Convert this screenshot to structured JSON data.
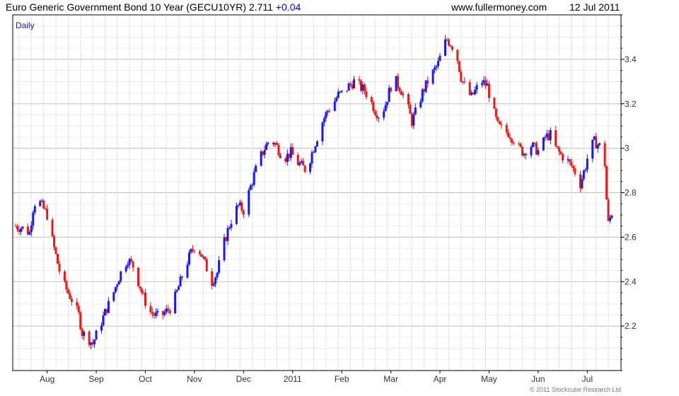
{
  "header": {
    "title": "Euro Generic Government Bond 10 Year (GECU10YR)",
    "last": "2.711",
    "change": "+0.04",
    "url": "www.fullermoney.com",
    "date": "12 Jul 2011"
  },
  "colors": {
    "up": "#1a1ae6",
    "down": "#e61a1a",
    "grid": "#c8c8c8",
    "frame": "#000000"
  },
  "chart_data": {
    "type": "candlestick",
    "period_label": "Daily",
    "copyright": "© 2011 Stockcube Research Ltd",
    "ylim": [
      2.0,
      3.6
    ],
    "y_ticks": [
      2.2,
      2.4,
      2.6,
      2.8,
      3.0,
      3.2,
      3.4
    ],
    "y_tick_labels": [
      "2.2",
      "2.4",
      "2.6",
      "2.8",
      "3",
      "3.2",
      "3.4"
    ],
    "x_labels": [
      "Aug",
      "Sep",
      "Oct",
      "Nov",
      "Dec",
      "2011",
      "Feb",
      "Mar",
      "Apr",
      "May",
      "Jun",
      "Jul"
    ],
    "x_label_days": [
      18,
      46,
      74,
      102,
      130,
      158,
      186,
      214,
      242,
      270,
      298,
      326
    ],
    "x_range": [
      0,
      342
    ],
    "close_series": [
      [
        0,
        2.65
      ],
      [
        4,
        2.64
      ],
      [
        8,
        2.62
      ],
      [
        10,
        2.73
      ],
      [
        12,
        2.78
      ],
      [
        15,
        2.74
      ],
      [
        18,
        2.7
      ],
      [
        20,
        2.62
      ],
      [
        22,
        2.55
      ],
      [
        25,
        2.45
      ],
      [
        28,
        2.38
      ],
      [
        32,
        2.32
      ],
      [
        36,
        2.25
      ],
      [
        38,
        2.17
      ],
      [
        41,
        2.15
      ],
      [
        44,
        2.12
      ],
      [
        46,
        2.16
      ],
      [
        49,
        2.22
      ],
      [
        52,
        2.28
      ],
      [
        55,
        2.33
      ],
      [
        58,
        2.4
      ],
      [
        61,
        2.46
      ],
      [
        64,
        2.5
      ],
      [
        67,
        2.47
      ],
      [
        70,
        2.4
      ],
      [
        73,
        2.33
      ],
      [
        76,
        2.27
      ],
      [
        79,
        2.25
      ],
      [
        82,
        2.24
      ],
      [
        85,
        2.26
      ],
      [
        88,
        2.28
      ],
      [
        91,
        2.33
      ],
      [
        94,
        2.4
      ],
      [
        97,
        2.47
      ],
      [
        100,
        2.53
      ],
      [
        103,
        2.57
      ],
      [
        106,
        2.52
      ],
      [
        109,
        2.46
      ],
      [
        112,
        2.4
      ],
      [
        115,
        2.44
      ],
      [
        118,
        2.55
      ],
      [
        121,
        2.63
      ],
      [
        124,
        2.7
      ],
      [
        127,
        2.74
      ],
      [
        130,
        2.72
      ],
      [
        133,
        2.8
      ],
      [
        136,
        2.88
      ],
      [
        139,
        2.95
      ],
      [
        142,
        3.0
      ],
      [
        145,
        3.04
      ],
      [
        148,
        3.02
      ],
      [
        151,
        2.98
      ],
      [
        154,
        2.96
      ],
      [
        157,
        2.98
      ],
      [
        160,
        2.94
      ],
      [
        163,
        2.92
      ],
      [
        166,
        2.9
      ],
      [
        169,
        2.98
      ],
      [
        172,
        3.05
      ],
      [
        175,
        3.12
      ],
      [
        178,
        3.17
      ],
      [
        181,
        3.2
      ],
      [
        184,
        3.24
      ],
      [
        187,
        3.25
      ],
      [
        190,
        3.28
      ],
      [
        193,
        3.3
      ],
      [
        196,
        3.28
      ],
      [
        199,
        3.26
      ],
      [
        202,
        3.22
      ],
      [
        205,
        3.17
      ],
      [
        208,
        3.14
      ],
      [
        211,
        3.2
      ],
      [
        214,
        3.28
      ],
      [
        217,
        3.3
      ],
      [
        220,
        3.26
      ],
      [
        223,
        3.2
      ],
      [
        226,
        3.12
      ],
      [
        229,
        3.18
      ],
      [
        232,
        3.25
      ],
      [
        235,
        3.3
      ],
      [
        238,
        3.34
      ],
      [
        241,
        3.38
      ],
      [
        244,
        3.46
      ],
      [
        246,
        3.49
      ],
      [
        249,
        3.46
      ],
      [
        252,
        3.4
      ],
      [
        254,
        3.32
      ],
      [
        257,
        3.26
      ],
      [
        260,
        3.23
      ],
      [
        263,
        3.27
      ],
      [
        266,
        3.3
      ],
      [
        269,
        3.28
      ],
      [
        272,
        3.18
      ],
      [
        275,
        3.1
      ],
      [
        278,
        3.08
      ],
      [
        281,
        3.07
      ],
      [
        284,
        3.04
      ],
      [
        287,
        3.0
      ],
      [
        290,
        2.98
      ],
      [
        293,
        3.02
      ],
      [
        296,
        3.0
      ],
      [
        299,
        2.98
      ],
      [
        302,
        3.05
      ],
      [
        305,
        3.06
      ],
      [
        308,
        3.0
      ],
      [
        311,
        2.97
      ],
      [
        314,
        2.95
      ],
      [
        317,
        2.92
      ],
      [
        320,
        2.88
      ],
      [
        322,
        2.84
      ],
      [
        325,
        2.92
      ],
      [
        327,
        2.99
      ],
      [
        330,
        3.03
      ],
      [
        333,
        3.01
      ],
      [
        335,
        2.98
      ],
      [
        336,
        2.93
      ],
      [
        337,
        2.77
      ],
      [
        338,
        2.66
      ],
      [
        340,
        2.71
      ]
    ]
  }
}
